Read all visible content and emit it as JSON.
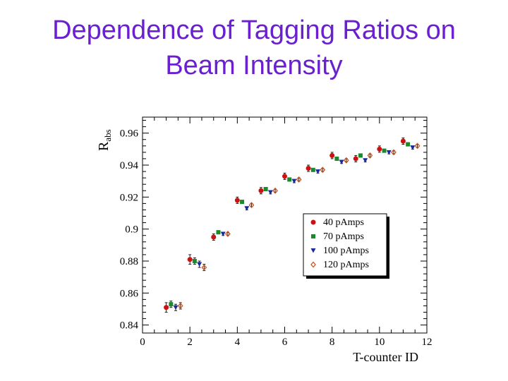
{
  "slide": {
    "title_line1": "Dependence of Tagging Ratios on",
    "title_line2": "Beam Intensity",
    "title_color": "#6a1fd0"
  },
  "chart_data": {
    "type": "scatter",
    "title": "",
    "xlabel": "T-counter ID",
    "ylabel_main": "R",
    "ylabel_sub": "abs",
    "xlim": [
      0,
      12
    ],
    "ylim": [
      0.835,
      0.97
    ],
    "x_ticks": [
      0,
      2,
      4,
      6,
      8,
      10,
      12
    ],
    "y_ticks": [
      0.84,
      0.86,
      0.88,
      0.9,
      0.92,
      0.94,
      0.96
    ],
    "y_tick_labels": [
      "0.84",
      "0.86",
      "0.88",
      "0.9",
      "0.92",
      "0.94",
      "0.96"
    ],
    "grid": false,
    "legend_position": "right",
    "series": [
      {
        "name": "40 pAmps",
        "marker": "circle",
        "color": "#cc1111",
        "x": [
          1,
          2,
          3,
          4,
          5,
          6,
          7,
          8,
          9,
          10,
          11
        ],
        "y": [
          0.851,
          0.881,
          0.895,
          0.918,
          0.924,
          0.933,
          0.938,
          0.946,
          0.944,
          0.95,
          0.955
        ],
        "err": [
          0.003,
          0.003,
          0.002,
          0.002,
          0.002,
          0.002,
          0.002,
          0.002,
          0.002,
          0.002,
          0.002
        ]
      },
      {
        "name": "70 pAmps",
        "marker": "square",
        "color": "#1a8a2a",
        "x": [
          1.2,
          2.2,
          3.2,
          4.2,
          5.2,
          6.2,
          7.2,
          8.2,
          9.2,
          10.2,
          11.2
        ],
        "y": [
          0.853,
          0.88,
          0.898,
          0.917,
          0.925,
          0.931,
          0.937,
          0.944,
          0.946,
          0.949,
          0.953
        ],
        "err": [
          0.002,
          0.002,
          0.001,
          0.001,
          0.001,
          0.001,
          0.001,
          0.001,
          0.001,
          0.001,
          0.001
        ]
      },
      {
        "name": "100 pAmps",
        "marker": "triangle-down",
        "color": "#1a2a9a",
        "x": [
          1.4,
          2.4,
          3.4,
          4.4,
          5.4,
          6.4,
          7.4,
          8.4,
          9.4,
          10.4,
          11.4
        ],
        "y": [
          0.851,
          0.878,
          0.897,
          0.913,
          0.923,
          0.93,
          0.936,
          0.942,
          0.943,
          0.948,
          0.951
        ],
        "err": [
          0.002,
          0.002,
          0.001,
          0.001,
          0.001,
          0.001,
          0.001,
          0.001,
          0.001,
          0.001,
          0.001
        ]
      },
      {
        "name": "120 pAmps",
        "marker": "diamond-open",
        "color": "#cc5522",
        "x": [
          1.6,
          2.6,
          3.6,
          4.6,
          5.6,
          6.6,
          7.6,
          8.6,
          9.6,
          10.6,
          11.6
        ],
        "y": [
          0.852,
          0.876,
          0.897,
          0.915,
          0.924,
          0.931,
          0.937,
          0.943,
          0.946,
          0.948,
          0.952
        ],
        "err": [
          0.002,
          0.002,
          0.001,
          0.001,
          0.001,
          0.001,
          0.001,
          0.001,
          0.001,
          0.001,
          0.001
        ]
      }
    ]
  }
}
